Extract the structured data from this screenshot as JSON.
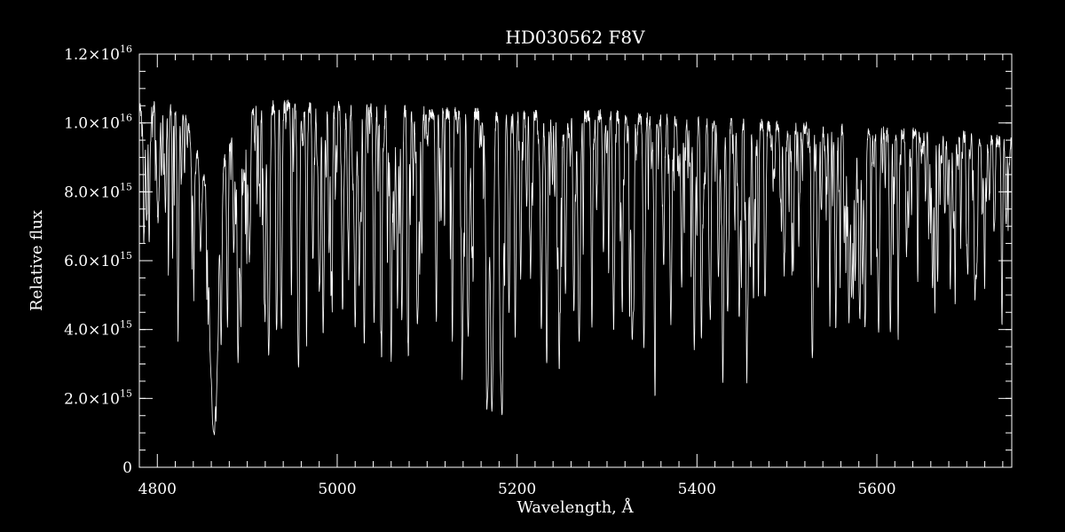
{
  "chart_data": {
    "type": "line",
    "title": "HD030562  F8V",
    "xlabel": "Wavelength, Å",
    "ylabel": "Relative flux",
    "xlim": [
      4780,
      5750
    ],
    "ylim": [
      0,
      1.2e+16
    ],
    "grid": false,
    "background": "#000000",
    "line_color": "#ffffff",
    "x_ticks": [
      {
        "value": 4800,
        "label": "4800"
      },
      {
        "value": 5000,
        "label": "5000"
      },
      {
        "value": 5200,
        "label": "5200"
      },
      {
        "value": 5400,
        "label": "5400"
      },
      {
        "value": 5600,
        "label": "5600"
      }
    ],
    "y_ticks": [
      {
        "value": 0,
        "mant": "0",
        "exp": ""
      },
      {
        "value": 2000000000000000.0,
        "mant": "2.0×10",
        "exp": "15"
      },
      {
        "value": 4000000000000000.0,
        "mant": "4.0×10",
        "exp": "15"
      },
      {
        "value": 6000000000000000.0,
        "mant": "6.0×10",
        "exp": "15"
      },
      {
        "value": 8000000000000000.0,
        "mant": "8.0×10",
        "exp": "15"
      },
      {
        "value": 1e+16,
        "mant": "1.0×10",
        "exp": "16"
      },
      {
        "value": 1.2e+16,
        "mant": "1.2×10",
        "exp": "16"
      }
    ],
    "continuum": [
      [
        4780,
        1.04e+16
      ],
      [
        4820,
        1.05e+16
      ],
      [
        4850,
        1.02e+16
      ],
      [
        4870,
        1.03e+16
      ],
      [
        4900,
        1.04e+16
      ],
      [
        4950,
        1.05e+16
      ],
      [
        5000,
        1.045e+16
      ],
      [
        5100,
        1.03e+16
      ],
      [
        5200,
        1.025e+16
      ],
      [
        5300,
        1.02e+16
      ],
      [
        5400,
        1.005e+16
      ],
      [
        5500,
        9900000000000000.0
      ],
      [
        5600,
        9750000000000000.0
      ],
      [
        5700,
        9600000000000000.0
      ],
      [
        5750,
        9400000000000000.0
      ]
    ],
    "lines": [
      [
        4785,
        7900000000000000.0,
        0.8
      ],
      [
        4791,
        7600000000000000.0,
        0.8
      ],
      [
        4800,
        8000000000000000.0,
        1.0
      ],
      [
        4809,
        7500000000000000.0,
        0.9
      ],
      [
        4823,
        5700000000000000.0,
        1.0
      ],
      [
        4840,
        7800000000000000.0,
        0.9
      ],
      [
        4848,
        7300000000000000.0,
        1.0
      ],
      [
        4859,
        6300000000000000.0,
        2.0
      ],
      [
        4862.5,
        1650000000000000.0,
        2.5
      ],
      [
        4866,
        4500000000000000.0,
        2.0
      ],
      [
        4871,
        5500000000000000.0,
        1.0
      ],
      [
        4878,
        4600000000000000.0,
        0.9
      ],
      [
        4885,
        6500000000000000.0,
        0.9
      ],
      [
        4890,
        4600000000000000.0,
        0.9
      ],
      [
        4892,
        6200000000000000.0,
        0.8
      ],
      [
        4903,
        6800000000000000.0,
        0.9
      ],
      [
        4919,
        4800000000000000.0,
        1.0
      ],
      [
        4924,
        3400000000000000.0,
        1.2
      ],
      [
        4933,
        5000000000000000.0,
        0.9
      ],
      [
        4938,
        4100000000000000.0,
        0.9
      ],
      [
        4957,
        2900000000000000.0,
        1.2
      ],
      [
        4966,
        7200000000000000.0,
        0.9
      ],
      [
        4973,
        6000000000000000.0,
        0.9
      ],
      [
        4980,
        5200000000000000.0,
        1.0
      ],
      [
        4985,
        5500000000000000.0,
        0.9
      ],
      [
        4994,
        6500000000000000.0,
        0.9
      ],
      [
        5006,
        4500000000000000.0,
        1.0
      ],
      [
        5012,
        6800000000000000.0,
        0.9
      ],
      [
        5020,
        4000000000000000.0,
        1.0
      ],
      [
        5030,
        6100000000000000.0,
        0.9
      ],
      [
        5041,
        4200000000000000.0,
        1.0
      ],
      [
        5049,
        4600000000000000.0,
        1.0
      ],
      [
        5060,
        6000000000000000.0,
        0.9
      ],
      [
        5072,
        5800000000000000.0,
        0.9
      ],
      [
        5079,
        5500000000000000.0,
        0.9
      ],
      [
        5090,
        4900000000000000.0,
        0.9
      ],
      [
        5110,
        5200000000000000.0,
        0.9
      ],
      [
        5128,
        5500000000000000.0,
        0.9
      ],
      [
        5139,
        3500000000000000.0,
        1.0
      ],
      [
        5146,
        4900000000000000.0,
        0.9
      ],
      [
        5150,
        6200000000000000.0,
        0.9
      ],
      [
        5167,
        2100000000000000.0,
        1.6
      ],
      [
        5172,
        2100000000000000.0,
        1.6
      ],
      [
        5183,
        2000000000000000.0,
        1.6
      ],
      [
        5191,
        4500000000000000.0,
        1.0
      ],
      [
        5198,
        5200000000000000.0,
        1.0
      ],
      [
        5204,
        5500000000000000.0,
        0.9
      ],
      [
        5215,
        6000000000000000.0,
        0.9
      ],
      [
        5227,
        4200000000000000.0,
        1.0
      ],
      [
        5233,
        3800000000000000.0,
        1.0
      ],
      [
        5247,
        5000000000000000.0,
        0.9
      ],
      [
        5254,
        6000000000000000.0,
        0.9
      ],
      [
        5263,
        5000000000000000.0,
        0.9
      ],
      [
        5269,
        3600000000000000.0,
        1.3
      ],
      [
        5283,
        5800000000000000.0,
        0.9
      ],
      [
        5296,
        6200000000000000.0,
        0.9
      ],
      [
        5307,
        5600000000000000.0,
        0.9
      ],
      [
        5317,
        6000000000000000.0,
        0.9
      ],
      [
        5328,
        3700000000000000.0,
        1.2
      ],
      [
        5341,
        4100000000000000.0,
        1.0
      ],
      [
        5353,
        6200000000000000.0,
        0.9
      ],
      [
        5363,
        5800000000000000.0,
        0.9
      ],
      [
        5371,
        4300000000000000.0,
        1.1
      ],
      [
        5383,
        5200000000000000.0,
        0.9
      ],
      [
        5397,
        3900000000000000.0,
        1.1
      ],
      [
        5405,
        4000000000000000.0,
        1.0
      ],
      [
        5415,
        5000000000000000.0,
        0.9
      ],
      [
        5424,
        5600000000000000.0,
        0.9
      ],
      [
        5429,
        3800000000000000.0,
        1.0
      ],
      [
        5434,
        4500000000000000.0,
        1.0
      ],
      [
        5447,
        4300000000000000.0,
        1.0
      ],
      [
        5455,
        5600000000000000.0,
        0.9
      ],
      [
        5463,
        6000000000000000.0,
        0.9
      ],
      [
        5476,
        5400000000000000.0,
        0.9
      ],
      [
        5497,
        5600000000000000.0,
        0.9
      ],
      [
        5507,
        6300000000000000.0,
        0.9
      ],
      [
        5528,
        4800000000000000.0,
        1.0
      ],
      [
        5535,
        6000000000000000.0,
        0.9
      ],
      [
        5554,
        6200000000000000.0,
        0.9
      ],
      [
        5569,
        4200000000000000.0,
        1.0
      ],
      [
        5572,
        5000000000000000.0,
        0.9
      ],
      [
        5576,
        5500000000000000.0,
        0.9
      ],
      [
        5587,
        4600000000000000.0,
        1.0
      ],
      [
        5602,
        4100000000000000.0,
        1.0
      ],
      [
        5615,
        4600000000000000.0,
        1.0
      ],
      [
        5624,
        5700000000000000.0,
        0.9
      ],
      [
        5633,
        6200000000000000.0,
        0.9
      ],
      [
        5662,
        5200000000000000.0,
        0.9
      ],
      [
        5682,
        6500000000000000.0,
        0.9
      ],
      [
        5701,
        6800000000000000.0,
        0.9
      ],
      [
        5709,
        5100000000000000.0,
        1.0
      ],
      [
        5711,
        6000000000000000.0,
        0.9
      ]
    ]
  }
}
